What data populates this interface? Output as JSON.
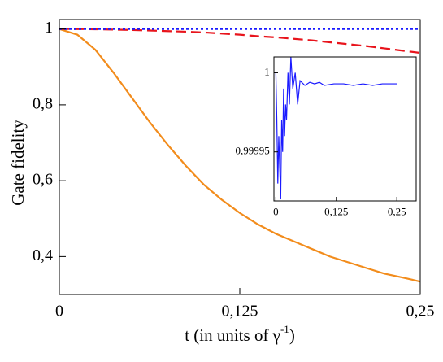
{
  "chart_data": [
    {
      "type": "line",
      "ylabel": "Gate fidelity",
      "xlabel": [
        "t (in units of γ",
        "-1",
        ")"
      ],
      "x": [
        0,
        0.0125,
        0.025,
        0.0375,
        0.05,
        0.0625,
        0.075,
        0.0875,
        0.1,
        0.1125,
        0.125,
        0.1375,
        0.15,
        0.1625,
        0.175,
        0.1875,
        0.2,
        0.2125,
        0.225,
        0.2375,
        0.25
      ],
      "series": [
        {
          "color": "#f28c1c",
          "dash": "solid",
          "values": [
            1.0,
            0.985,
            0.945,
            0.885,
            0.82,
            0.755,
            0.695,
            0.64,
            0.59,
            0.55,
            0.515,
            0.485,
            0.46,
            0.44,
            0.42,
            0.4,
            0.385,
            0.37,
            0.355,
            0.345,
            0.334
          ]
        },
        {
          "color": "#e8141c",
          "dash": "dashed",
          "values": [
            1.0,
            0.9998,
            0.9993,
            0.9985,
            0.9975,
            0.996,
            0.9945,
            0.993,
            0.991,
            0.988,
            0.985,
            0.981,
            0.978,
            0.974,
            0.97,
            0.965,
            0.96,
            0.955,
            0.949,
            0.943,
            0.937
          ]
        },
        {
          "color": "#1a1aff",
          "dash": "dotted",
          "values": [
            1,
            1,
            1,
            1,
            1,
            1,
            1,
            1,
            1,
            1,
            1,
            1,
            1,
            1,
            1,
            1,
            1,
            1,
            1,
            1,
            1
          ]
        }
      ],
      "xlim": [
        0,
        0.25
      ],
      "ylim": [
        0.3,
        1.025
      ],
      "xticks": [
        0,
        {
          "value": 0.125,
          "label": "0,125"
        },
        {
          "value": 0.25,
          "label": "0,25"
        }
      ],
      "yticks": [
        {
          "value": 0.4,
          "label": "0,4"
        },
        {
          "value": 0.6,
          "label": "0,6"
        },
        {
          "value": 0.8,
          "label": "0,8"
        },
        1
      ]
    },
    {
      "type": "line",
      "x": [
        0,
        0.002,
        0.004,
        0.006,
        0.008,
        0.01,
        0.012,
        0.014,
        0.016,
        0.018,
        0.02,
        0.022,
        0.025,
        0.028,
        0.031,
        0.035,
        0.04,
        0.045,
        0.05,
        0.06,
        0.07,
        0.08,
        0.09,
        0.1,
        0.12,
        0.14,
        0.16,
        0.18,
        0.2,
        0.22,
        0.24,
        0.25
      ],
      "series": [
        {
          "color": "#1a1aff",
          "dash": "solid",
          "values": [
            1.0,
            0.99997,
            0.99993,
            0.99996,
            0.99994,
            0.99992,
            0.99997,
            0.99995,
            0.99999,
            0.99996,
            0.99998,
            0.99997,
            1.0,
            0.99998,
            1.00001,
            0.99999,
            1.0,
            0.99998,
            0.999995,
            0.999992,
            0.999994,
            0.999993,
            0.999994,
            0.999992,
            0.999993,
            0.999993,
            0.999992,
            0.999993,
            0.999992,
            0.999993,
            0.999993,
            0.999993
          ]
        }
      ],
      "xlim": [
        -0.004,
        0.29
      ],
      "ylim": [
        0.999919,
        1.00001
      ],
      "xticks": [
        0,
        {
          "value": 0.125,
          "label": "0,125"
        },
        {
          "value": 0.25,
          "label": "0,25"
        }
      ],
      "yticks": [
        {
          "value": 0.99995,
          "label": "0,99995"
        },
        1
      ]
    }
  ]
}
